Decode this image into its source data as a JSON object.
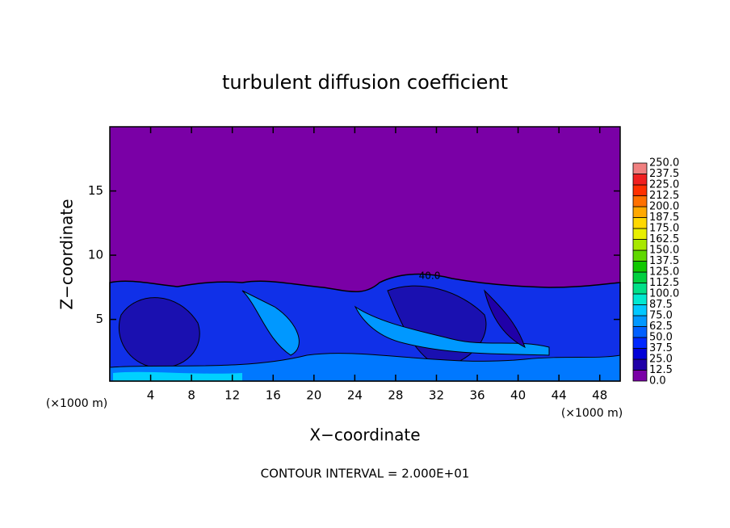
{
  "chart_data": {
    "type": "contour",
    "title": "turbulent diffusion coefficient",
    "xlabel": "X−coordinate",
    "ylabel": "Z−coordinate",
    "xunit": "(×1000 m)",
    "yunit": "(×1000 m)",
    "annotation": "CONTOUR INTERVAL = 2.000E+01",
    "contour_label": "40.0",
    "xlim": [
      0,
      50
    ],
    "ylim": [
      0.2,
      20
    ],
    "xticks": [
      4,
      8,
      12,
      16,
      20,
      24,
      28,
      32,
      36,
      40,
      44,
      48
    ],
    "yticks": [
      5,
      10,
      15
    ],
    "levels": [
      {
        "value": 0,
        "label": "0.0"
      },
      {
        "value": 12.5,
        "label": "12.5"
      },
      {
        "value": 25,
        "label": "25.0"
      },
      {
        "value": 37.5,
        "label": "37.5"
      },
      {
        "value": 50,
        "label": "50.0"
      },
      {
        "value": 62.5,
        "label": "62.5"
      },
      {
        "value": 75,
        "label": "75.0"
      },
      {
        "value": 87.5,
        "label": "87.5"
      },
      {
        "value": 100,
        "label": "100.0"
      },
      {
        "value": 112.5,
        "label": "112.5"
      },
      {
        "value": 125,
        "label": "125.0"
      },
      {
        "value": 137.5,
        "label": "137.5"
      },
      {
        "value": 150,
        "label": "150.0"
      },
      {
        "value": 162.5,
        "label": "162.5"
      },
      {
        "value": 175,
        "label": "175.0"
      },
      {
        "value": 187.5,
        "label": "187.5"
      },
      {
        "value": 200,
        "label": "200.0"
      },
      {
        "value": 212.5,
        "label": "212.5"
      },
      {
        "value": 225,
        "label": "225.0"
      },
      {
        "value": 237.5,
        "label": "237.5"
      },
      {
        "value": 250,
        "label": "250.0"
      }
    ],
    "colors": [
      "#7a00a6",
      "#2000a8",
      "#0000d8",
      "#0028ff",
      "#0060ff",
      "#0098ff",
      "#00c8ff",
      "#00e8d0",
      "#00e088",
      "#00d040",
      "#10c800",
      "#60d800",
      "#a8e800",
      "#e8f000",
      "#ffd800",
      "#ffa800",
      "#ff7000",
      "#ff3000",
      "#f02020",
      "#f08080"
    ]
  }
}
